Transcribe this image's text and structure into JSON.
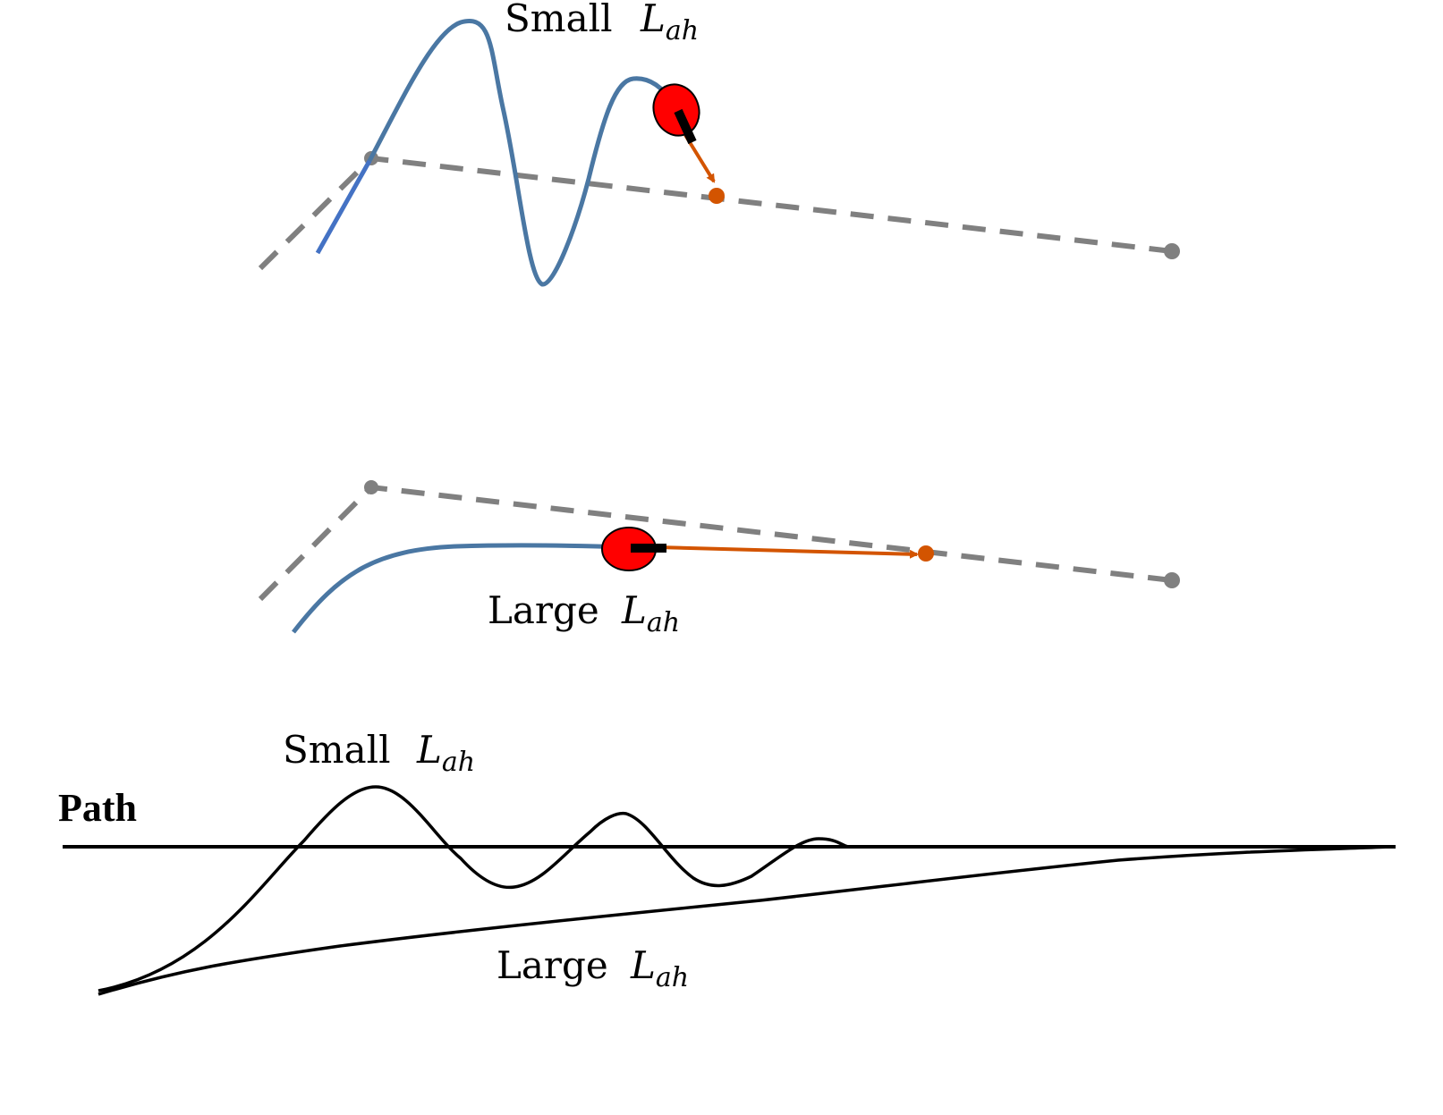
{
  "labels": {
    "top_small": "Small",
    "mid_large": "Large",
    "bottom_small": "Small",
    "bottom_large": "Large",
    "path": "Path",
    "lookahead_symbol": "L",
    "lookahead_subscript": "ah"
  },
  "colors": {
    "path_dashed": "#808080",
    "trajectory": "#4a77a3",
    "trajectory_start": "#4472c4",
    "vehicle_fill": "#ff0000",
    "goal_arrow": "#d35400",
    "ink": "#000000"
  }
}
